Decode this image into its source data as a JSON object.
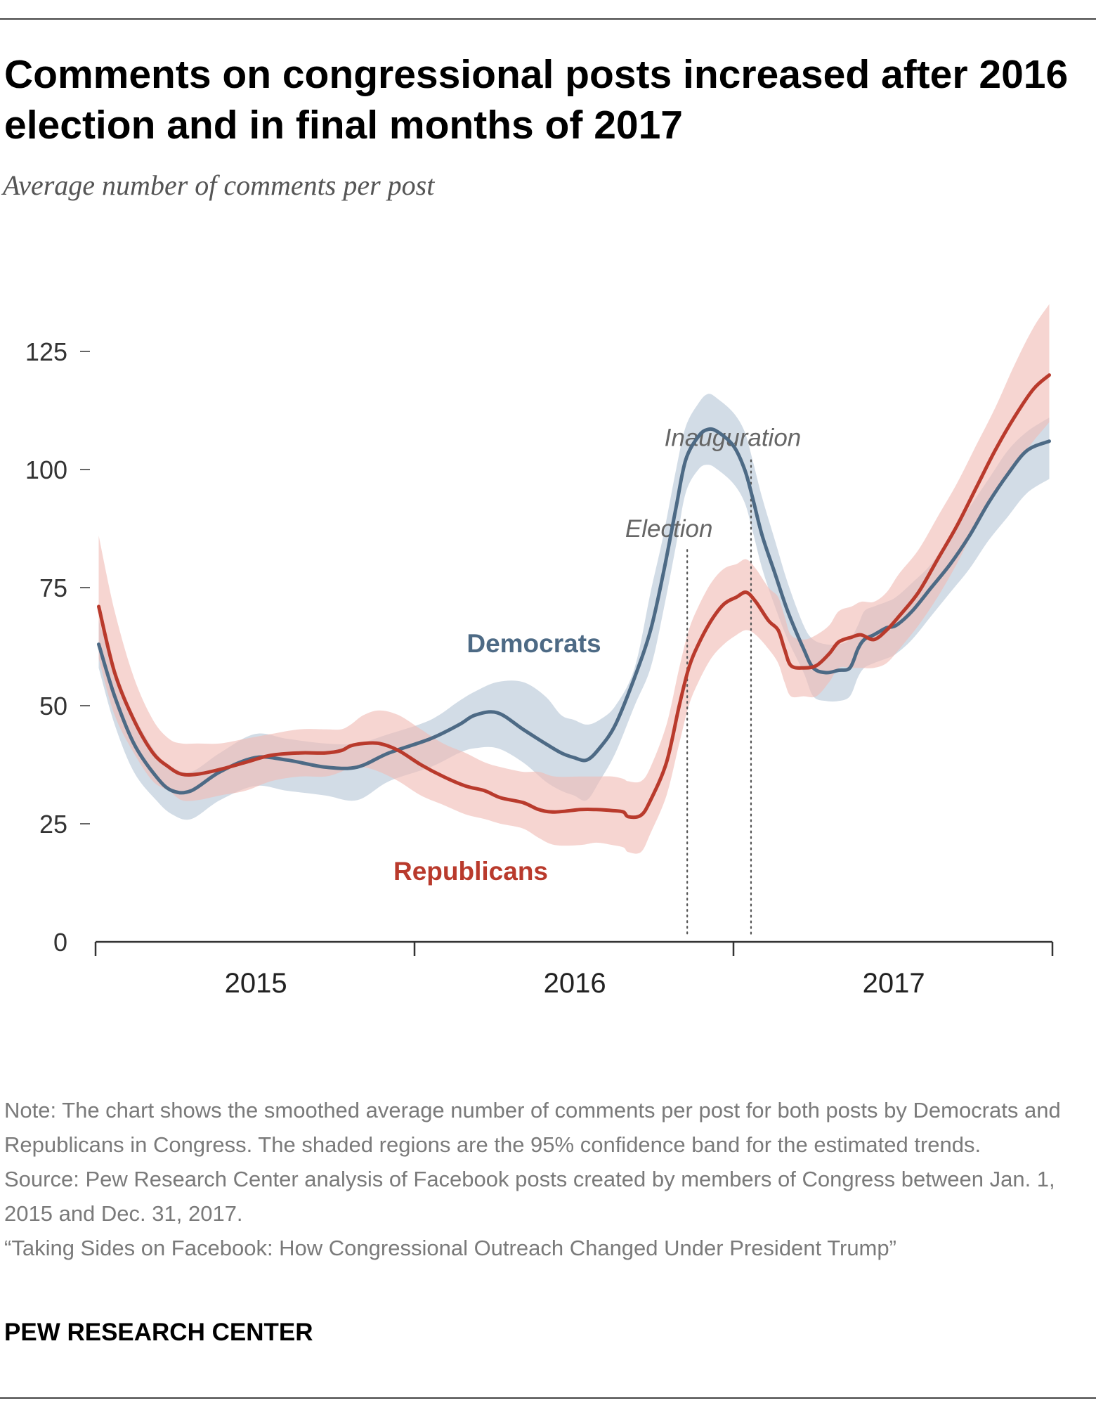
{
  "header": {
    "title": "Comments on congressional posts increased after 2016 election and in final months of 2017",
    "subtitle": "Average number of comments per post"
  },
  "colors": {
    "democrats": "#4d6a85",
    "democrats_band": "#b6c7d6",
    "republicans": "#b93a2c",
    "republicans_band": "#f0bcb5",
    "axis": "#333333",
    "marker_text": "#666666"
  },
  "chart_data": {
    "type": "line",
    "title": "Comments on congressional posts increased after 2016 election and in final months of 2017",
    "ylabel": "Average number of comments per post",
    "xlabel": "",
    "ylim": [
      0,
      125
    ],
    "yticks": [
      0,
      25,
      50,
      75,
      100,
      125
    ],
    "xlim": [
      2014.48,
      2017.48
    ],
    "xticks": [
      2014.48,
      2015.48,
      2016.48,
      2017.48
    ],
    "xtick_labels": [
      {
        "label": "2015",
        "x": 2015.0
      },
      {
        "label": "2016",
        "x": 2016.0
      },
      {
        "label": "2017",
        "x": 2017.0
      }
    ],
    "grid": false,
    "annotations": [
      {
        "label": "Election",
        "x": 2016.335
      },
      {
        "label": "Inauguration",
        "x": 2016.535
      }
    ],
    "series": [
      {
        "name": "Democrats",
        "x": [
          2014.49,
          2014.54,
          2014.6,
          2014.67,
          2014.72,
          2014.78,
          2014.87,
          2014.98,
          2015.08,
          2015.2,
          2015.3,
          2015.4,
          2015.53,
          2015.62,
          2015.67,
          2015.74,
          2015.82,
          2015.89,
          2015.94,
          2015.98,
          2016.02,
          2016.06,
          2016.11,
          2016.17,
          2016.22,
          2016.26,
          2016.3,
          2016.33,
          2016.37,
          2016.4,
          2016.43,
          2016.48,
          2016.515,
          2016.54,
          2016.57,
          2016.61,
          2016.65,
          2016.7,
          2016.73,
          2016.77,
          2016.81,
          2016.845,
          2016.87,
          2016.89,
          2016.92,
          2016.96,
          2016.99,
          2017.04,
          2017.1,
          2017.16,
          2017.22,
          2017.28,
          2017.34,
          2017.4,
          2017.47
        ],
        "values": [
          63,
          52,
          42,
          35,
          32,
          32,
          36,
          39,
          38.5,
          37,
          37,
          40,
          43,
          46,
          48,
          48.5,
          45,
          42,
          40,
          39,
          38.5,
          41,
          46,
          56,
          66,
          78,
          92,
          102,
          107,
          108.5,
          108,
          105,
          100,
          94,
          86,
          78,
          70,
          62,
          58,
          57,
          57.5,
          58,
          62,
          64,
          65,
          66.5,
          67,
          70,
          75,
          80,
          86,
          93,
          99,
          104,
          106
        ],
        "band_upper": [
          68,
          58,
          48,
          40,
          37,
          36,
          40,
          44,
          43,
          42,
          42,
          44,
          47,
          51,
          53,
          55,
          55,
          52,
          48,
          47,
          46,
          47,
          50,
          58,
          74,
          86,
          100,
          109,
          114,
          116,
          115,
          112,
          108,
          102,
          94,
          85,
          76,
          67,
          64,
          63,
          63,
          64,
          67,
          70,
          71,
          72,
          73,
          76,
          80,
          86,
          92,
          98,
          104,
          108,
          111
        ],
        "band_lower": [
          58,
          46,
          36,
          30,
          27,
          26,
          30,
          33,
          32,
          31,
          30,
          34,
          37,
          40,
          41,
          41,
          38,
          34,
          32,
          31,
          30,
          34,
          40,
          50,
          58,
          70,
          84,
          95,
          100,
          101,
          100,
          97,
          93,
          87,
          79,
          71,
          64,
          57,
          52,
          51,
          51,
          52,
          56,
          58,
          59,
          60,
          61,
          64,
          69,
          74,
          79,
          85,
          90,
          95,
          98
        ]
      },
      {
        "name": "Republicans",
        "x": [
          2014.49,
          2014.54,
          2014.6,
          2014.66,
          2014.71,
          2014.75,
          2014.8,
          2014.87,
          2014.95,
          2015.03,
          2015.12,
          2015.2,
          2015.25,
          2015.28,
          2015.32,
          2015.37,
          2015.43,
          2015.5,
          2015.57,
          2015.64,
          2015.7,
          2015.75,
          2015.82,
          2015.87,
          2015.92,
          2016.0,
          2016.05,
          2016.1,
          2016.135,
          2016.15,
          2016.19,
          2016.22,
          2016.27,
          2016.31,
          2016.34,
          2016.37,
          2016.41,
          2016.45,
          2016.49,
          2016.52,
          2016.55,
          2016.59,
          2016.62,
          2016.64,
          2016.66,
          2016.7,
          2016.74,
          2016.78,
          2016.81,
          2016.85,
          2016.88,
          2016.92,
          2016.96,
          2017.0,
          2017.06,
          2017.12,
          2017.18,
          2017.24,
          2017.3,
          2017.36,
          2017.42,
          2017.47
        ],
        "values": [
          71,
          57,
          47,
          40,
          37,
          35.5,
          35.5,
          36.5,
          38,
          39.5,
          40,
          40,
          40.5,
          41.5,
          42,
          42,
          40.5,
          37.5,
          35,
          33,
          32,
          30.5,
          29.5,
          28,
          27.5,
          28,
          28,
          27.8,
          27.5,
          26.5,
          26.8,
          30,
          38,
          50,
          58,
          63,
          68,
          71.5,
          73,
          74,
          72,
          68,
          66,
          62,
          58.5,
          58,
          58.5,
          61,
          63.5,
          64.5,
          65,
          64,
          66,
          69,
          74,
          81,
          88,
          96,
          104,
          111,
          117,
          120
        ],
        "band_upper": [
          86,
          70,
          56,
          47,
          43,
          42,
          42,
          42,
          43,
          44,
          45,
          45,
          45,
          46,
          48,
          49,
          48,
          45,
          42,
          40,
          38,
          37,
          36,
          36,
          35,
          35,
          35,
          35,
          34.5,
          34,
          34,
          37,
          46,
          58,
          66,
          71,
          76,
          79,
          80,
          81,
          79,
          75,
          73,
          69,
          65,
          64,
          65,
          67,
          70,
          71,
          72,
          72,
          74,
          78,
          83,
          90,
          97,
          105,
          113,
          122,
          130,
          135
        ],
        "band_lower": [
          60,
          48,
          40,
          34,
          32,
          30,
          30,
          31,
          32,
          34,
          35,
          35,
          36,
          37,
          37,
          36,
          34,
          31,
          29,
          27,
          26,
          25,
          24,
          22,
          20.5,
          20.5,
          21,
          20.5,
          20,
          19,
          19,
          23,
          31,
          42,
          50,
          55,
          60,
          63,
          65,
          66,
          65,
          62,
          59,
          55,
          52,
          52,
          52,
          55,
          58,
          58,
          58,
          58,
          59,
          62,
          67,
          73,
          80,
          88,
          95,
          101,
          106,
          110
        ]
      }
    ],
    "series_labels": [
      {
        "name": "Democrats",
        "text": "Democrats"
      },
      {
        "name": "Republicans",
        "text": "Republicans"
      }
    ]
  },
  "footer": {
    "note": "Note: The chart shows the smoothed average number of comments per post for both posts by Democrats and Republicans in Congress. The shaded regions are the 95% confidence band for the estimated trends.",
    "source": "Source: Pew Research Center analysis of Facebook posts created by members of Congress between Jan. 1, 2015 and Dec. 31, 2017.",
    "report": "“Taking Sides on Facebook: How Congressional Outreach Changed Under President Trump”",
    "brand": "PEW RESEARCH CENTER"
  }
}
